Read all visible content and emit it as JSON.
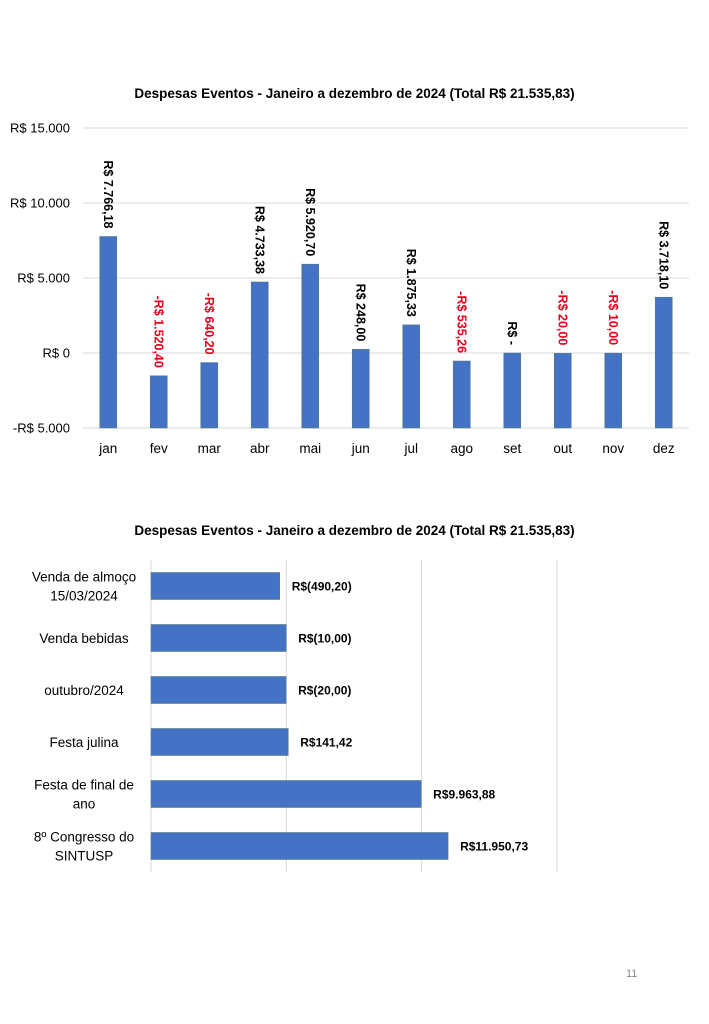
{
  "page": {
    "number": "11"
  },
  "colors": {
    "bar": "#4472C4",
    "bar_border": "#5B7F7A",
    "negative_label": "#E8001C",
    "positive_label": "#000000",
    "grid": "#D9D9D9"
  },
  "chart_data": [
    {
      "type": "bar",
      "title": "Despesas Eventos - Janeiro a dezembro de 2024 (Total R$ 21.535,83)",
      "xlabel": "",
      "ylabel": "",
      "ylim": [
        -5000,
        15000
      ],
      "yticks": [
        15000,
        10000,
        5000,
        0,
        -5000
      ],
      "ytick_labels": [
        "R$ 15.000",
        "R$ 10.000",
        "R$ 5.000",
        "R$ 0",
        "-R$ 5.000"
      ],
      "grid": true,
      "categories": [
        "jan",
        "fev",
        "mar",
        "abr",
        "mai",
        "jun",
        "jul",
        "ago",
        "set",
        "out",
        "nov",
        "dez"
      ],
      "values": [
        7766.18,
        -1520.4,
        -640.2,
        4733.38,
        5920.7,
        248.0,
        1875.33,
        -535.26,
        0,
        -20.0,
        -10.0,
        3718.1
      ],
      "data_labels": [
        "R$ 7.766,18",
        "-R$ 1.520,40",
        "-R$ 640,20",
        "R$ 4.733,38",
        "R$ 5.920,70",
        "R$ 248,00",
        "R$ 1.875,33",
        "-R$ 535,26",
        "R$ -",
        "-R$ 20,00",
        "-R$ 10,00",
        "R$ 3.718,10"
      ]
    },
    {
      "type": "bar",
      "orientation": "horizontal",
      "title": "Despesas Eventos - Janeiro a dezembro de 2024 (Total R$ 21.535,83)",
      "xlabel": "",
      "ylabel": "",
      "xlim": [
        -10000,
        20000
      ],
      "xticks": [
        -10000,
        0,
        10000,
        20000
      ],
      "grid": true,
      "categories": [
        [
          "Venda de almoço",
          "15/03/2024"
        ],
        [
          "Venda bebidas"
        ],
        [
          "outubro/2024"
        ],
        [
          "Festa julina"
        ],
        [
          "Festa de final de",
          "ano"
        ],
        [
          "8º Congresso do",
          "SINTUSP"
        ]
      ],
      "values": [
        -490.2,
        -10.0,
        -20.0,
        141.42,
        9963.88,
        11950.73
      ],
      "data_labels": [
        "R$(490,20)",
        "R$(10,00)",
        "R$(20,00)",
        "R$141,42",
        "R$9.963,88",
        "R$11.950,73"
      ]
    }
  ]
}
